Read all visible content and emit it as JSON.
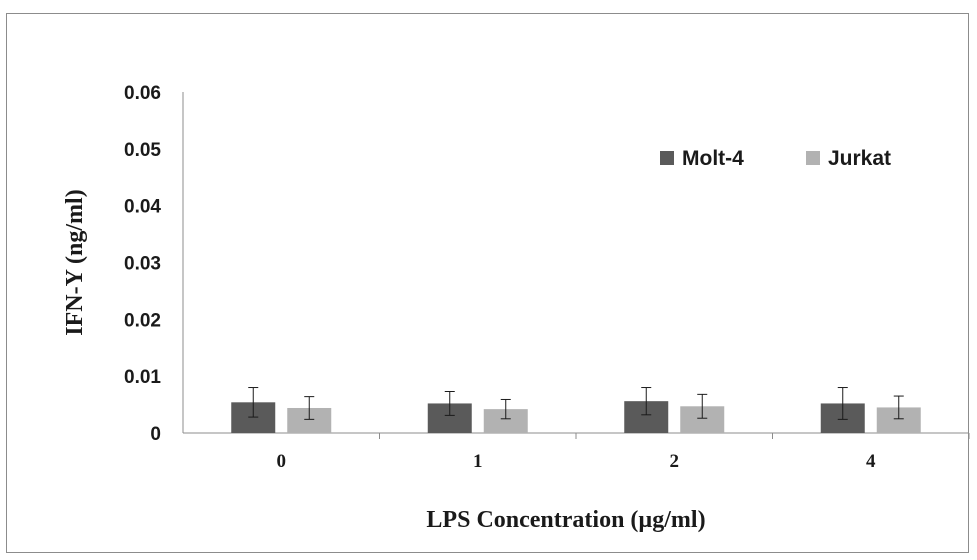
{
  "chart_data": {
    "type": "bar",
    "categories": [
      "0",
      "1",
      "2",
      "4"
    ],
    "series": [
      {
        "name": "Molt-4",
        "color": "#5a5a5a",
        "values": [
          0.0054,
          0.0052,
          0.0056,
          0.0052
        ],
        "error": [
          0.0026,
          0.0021,
          0.0024,
          0.0028
        ]
      },
      {
        "name": "Jurkat",
        "color": "#b2b2b2",
        "values": [
          0.0044,
          0.0042,
          0.0047,
          0.0045
        ],
        "error": [
          0.002,
          0.0017,
          0.0021,
          0.002
        ]
      }
    ],
    "xlabel": "LPS Concentration (µg/ml)",
    "ylabel": "IFN-Y (ng/ml)",
    "ylim": [
      0,
      0.06
    ],
    "yticks": [
      "0",
      "0.01",
      "0.02",
      "0.03",
      "0.04",
      "0.05",
      "0.06"
    ],
    "grid": false,
    "legend_position": "top-right"
  }
}
